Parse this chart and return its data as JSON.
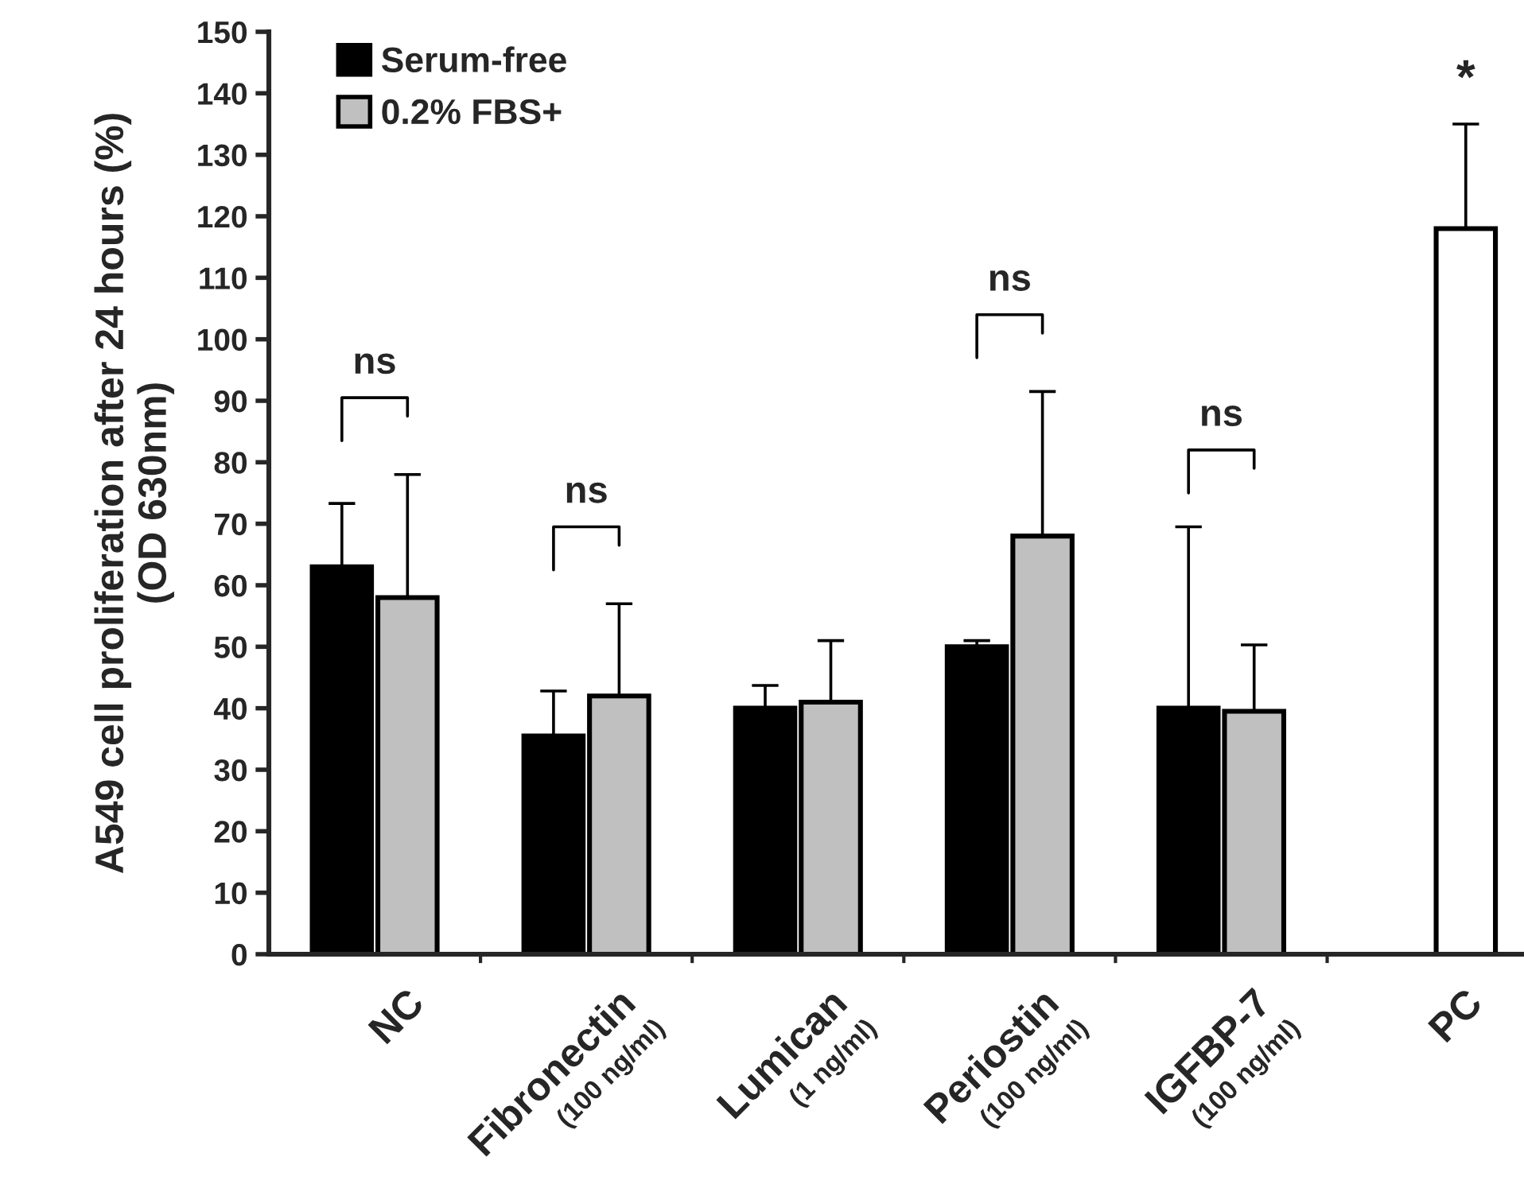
{
  "chart_data": {
    "type": "bar",
    "categories": [
      "NC",
      "Fibronectin\n(100 ng/ml)",
      "Lumican\n(1 ng/ml)",
      "Periostin\n(100 ng/ml)",
      "IGFBP-7\n(100 ng/ml)",
      "PC"
    ],
    "ylabel": "A549 cell proliferation after 24 hours (%)\n(OD 630nm)",
    "series": [
      {
        "name": "Serum-free",
        "color": "#000000",
        "values": [
          63,
          35.5,
          40,
          50,
          40,
          null
        ],
        "errors": [
          [
            63,
            73.3
          ],
          [
            35.5,
            42.8
          ],
          [
            40,
            43.7
          ],
          [
            50,
            51
          ],
          [
            40,
            69.5
          ],
          null
        ]
      },
      {
        "name": "0.2% FBS+",
        "color": "#c0c0c0",
        "colors": [
          "#c0c0c0",
          "#c0c0c0",
          "#c0c0c0",
          "#c0c0c0",
          "#c0c0c0",
          "#ffffff"
        ],
        "values": [
          58,
          42,
          41,
          68,
          39.5,
          118
        ],
        "errors": [
          [
            58,
            78
          ],
          [
            42,
            57
          ],
          [
            41,
            51
          ],
          [
            68,
            91.5
          ],
          [
            39.5,
            50.3
          ],
          [
            118,
            135
          ]
        ]
      }
    ],
    "ylim": [
      0,
      150
    ],
    "yticks": [
      0,
      10,
      20,
      30,
      40,
      50,
      60,
      70,
      80,
      90,
      100,
      110,
      120,
      130,
      140,
      150
    ],
    "grid": false,
    "legend": "top left",
    "annotations": [
      "ns",
      "ns",
      "ns",
      "ns",
      "*"
    ]
  }
}
